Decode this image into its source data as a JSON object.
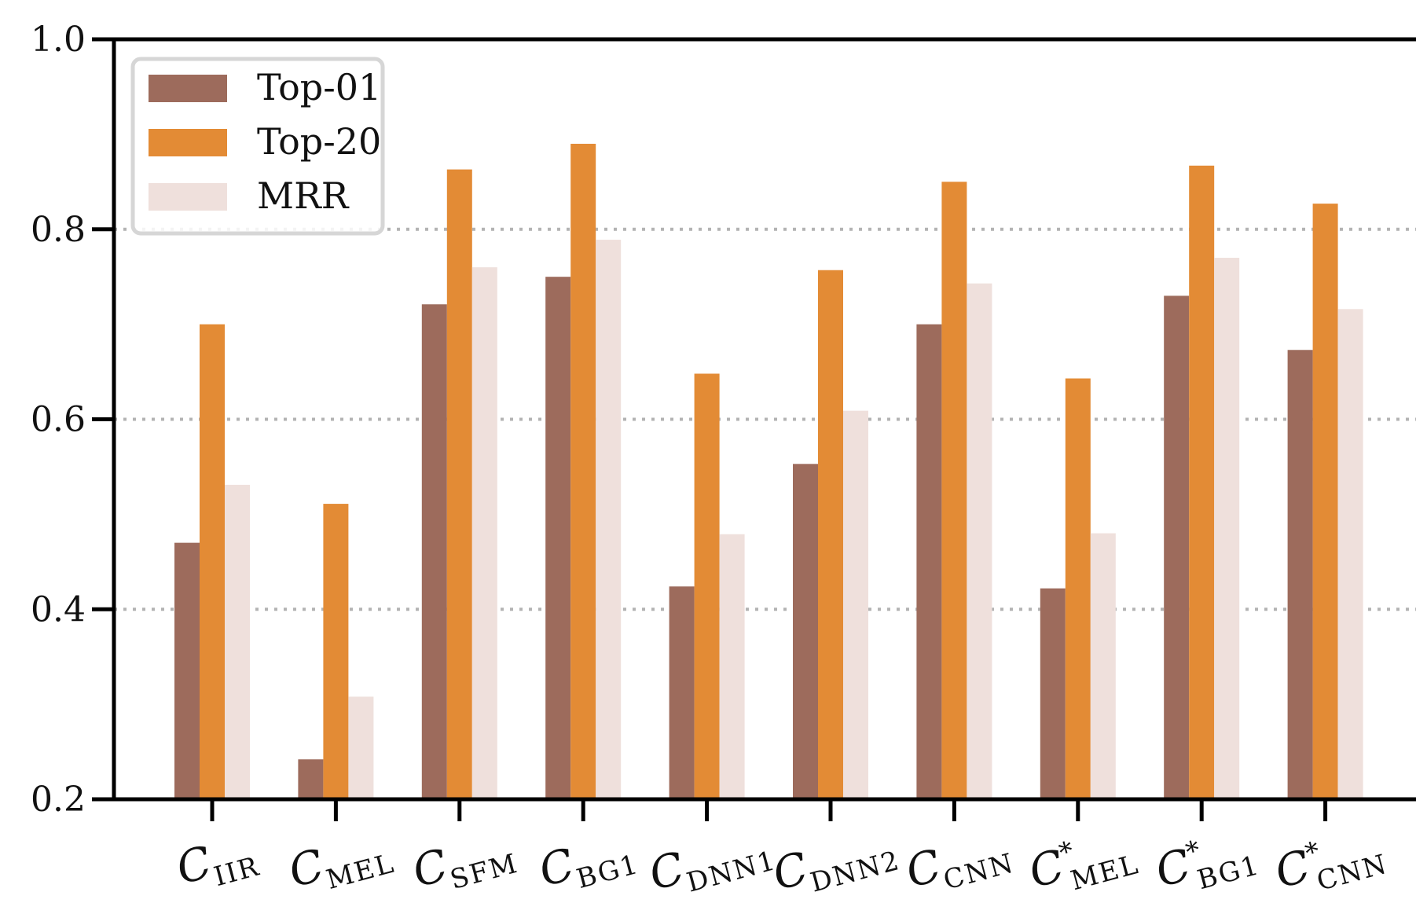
{
  "chart_data": {
    "type": "bar",
    "title": "",
    "xlabel": "",
    "ylabel": "",
    "ylim": [
      0.2,
      1.0
    ],
    "yticks": [
      "0.2",
      "0.4",
      "0.6",
      "0.8",
      "1.0"
    ],
    "grid": "horizontal dotted",
    "legend_position": "top-left",
    "categories": [
      {
        "main": "C",
        "sup": "",
        "sub": "IIR"
      },
      {
        "main": "C",
        "sup": "",
        "sub": "MEL"
      },
      {
        "main": "C",
        "sup": "",
        "sub": "SFM"
      },
      {
        "main": "C",
        "sup": "",
        "sub": "BG1"
      },
      {
        "main": "C",
        "sup": "",
        "sub": "DNN1"
      },
      {
        "main": "C",
        "sup": "",
        "sub": "DNN2"
      },
      {
        "main": "C",
        "sup": "",
        "sub": "CNN"
      },
      {
        "main": "C",
        "sup": "*",
        "sub": "MEL"
      },
      {
        "main": "C",
        "sup": "*",
        "sub": "BG1"
      },
      {
        "main": "C",
        "sup": "*",
        "sub": "CNN"
      }
    ],
    "series": [
      {
        "name": "Top-01",
        "color": "#9d6b5c",
        "values": [
          0.47,
          0.242,
          0.721,
          0.75,
          0.424,
          0.553,
          0.7,
          0.422,
          0.73,
          0.673
        ]
      },
      {
        "name": "Top-20",
        "color": "#e38b35",
        "values": [
          0.7,
          0.511,
          0.863,
          0.89,
          0.648,
          0.757,
          0.85,
          0.643,
          0.867,
          0.827
        ]
      },
      {
        "name": "MRR",
        "color": "#efe0dc",
        "values": [
          0.531,
          0.308,
          0.76,
          0.789,
          0.479,
          0.609,
          0.743,
          0.48,
          0.77,
          0.716
        ]
      }
    ]
  }
}
